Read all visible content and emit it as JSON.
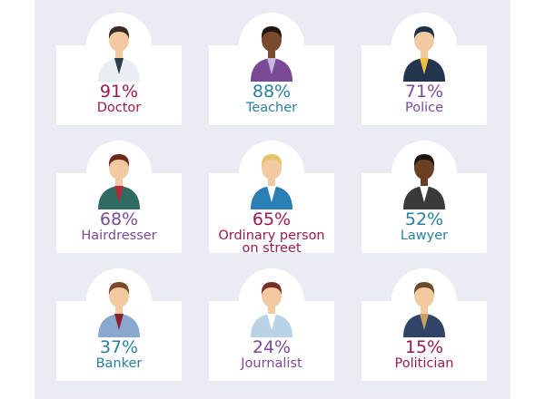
{
  "cards": [
    {
      "percent": "91%",
      "label": "Doctor",
      "color": "#9b1a4b"
    },
    {
      "percent": "88%",
      "label": "Teacher",
      "color": "#2a7f9e"
    },
    {
      "percent": "71%",
      "label": "Police",
      "color": "#7b4a96"
    },
    {
      "percent": "68%",
      "label": "Hairdresser",
      "color": "#7b4a96"
    },
    {
      "percent": "65%",
      "label": "Ordinary person on street",
      "color": "#9b1a4b"
    },
    {
      "percent": "52%",
      "label": "Lawyer",
      "color": "#2a7f9e"
    },
    {
      "percent": "37%",
      "label": "Banker",
      "color": "#2a7f9e"
    },
    {
      "percent": "24%",
      "label": "Journalist",
      "color": "#7b4a96"
    },
    {
      "percent": "15%",
      "label": "Politician",
      "color": "#9b1a4b"
    }
  ]
}
